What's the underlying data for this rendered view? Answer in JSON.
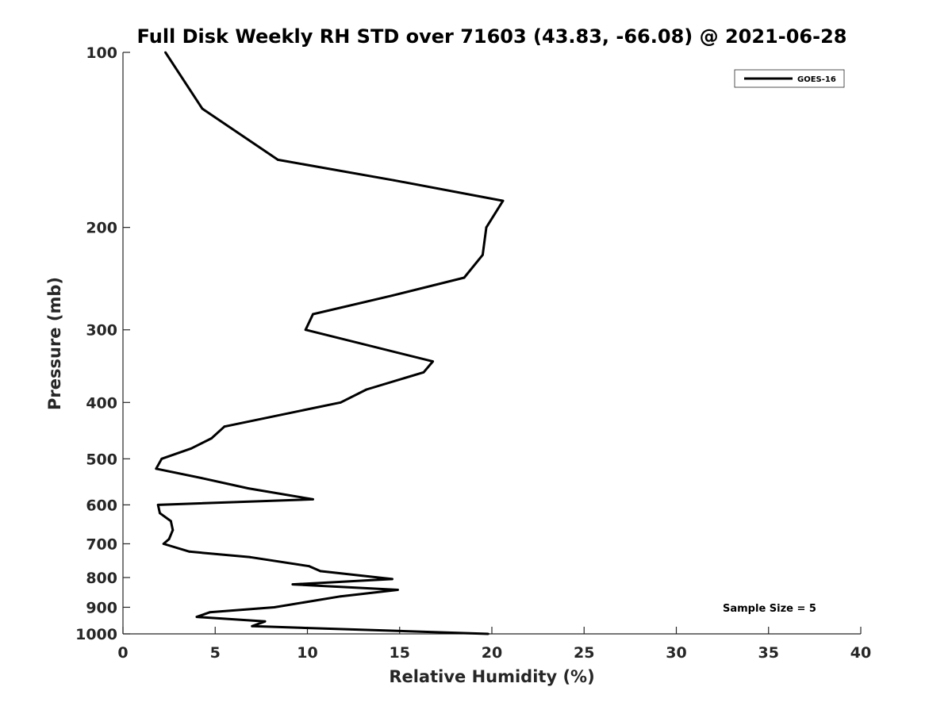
{
  "chart_data": {
    "type": "line",
    "title": "Full Disk Weekly RH STD over 71603 (43.83, -66.08) @ 2021-06-28",
    "xlabel": "Relative Humidity (%)",
    "ylabel": "Pressure (mb)",
    "xlim": [
      0,
      40
    ],
    "ylim": [
      100,
      1000
    ],
    "yscale": "log",
    "y_reversed": true,
    "x_ticks": [
      0,
      5,
      10,
      15,
      20,
      25,
      30,
      35,
      40
    ],
    "x_tick_labels": [
      "0",
      "5",
      "10",
      "15",
      "20",
      "25",
      "30",
      "35",
      "40"
    ],
    "y_ticks": [
      100,
      200,
      300,
      400,
      500,
      600,
      700,
      800,
      900,
      1000
    ],
    "y_tick_labels": [
      "100",
      "200",
      "300",
      "400",
      "500",
      "600",
      "700",
      "800",
      "900",
      "1000"
    ],
    "grid": false,
    "legend": {
      "position": "top-right",
      "entries": [
        "GOES-16"
      ]
    },
    "annotation": "Sample Size = 5",
    "series": [
      {
        "name": "GOES-16",
        "color": "#000000",
        "points": [
          [
            2.3,
            100
          ],
          [
            4.3,
            125
          ],
          [
            8.4,
            153
          ],
          [
            14.7,
            166
          ],
          [
            20.6,
            180
          ],
          [
            19.7,
            200
          ],
          [
            19.5,
            223
          ],
          [
            18.5,
            244
          ],
          [
            14.6,
            262
          ],
          [
            10.3,
            282
          ],
          [
            9.9,
            300
          ],
          [
            16.8,
            340
          ],
          [
            16.3,
            355
          ],
          [
            13.2,
            380
          ],
          [
            11.8,
            400
          ],
          [
            5.5,
            440
          ],
          [
            4.8,
            461
          ],
          [
            3.7,
            480
          ],
          [
            2.1,
            500
          ],
          [
            1.8,
            520
          ],
          [
            4.3,
            540
          ],
          [
            6.8,
            562
          ],
          [
            10.3,
            587
          ],
          [
            1.9,
            600
          ],
          [
            2.0,
            620
          ],
          [
            2.6,
            640
          ],
          [
            2.7,
            663
          ],
          [
            2.5,
            687
          ],
          [
            2.2,
            700
          ],
          [
            3.6,
            722
          ],
          [
            6.9,
            738
          ],
          [
            10.1,
            765
          ],
          [
            10.7,
            780
          ],
          [
            14.6,
            805
          ],
          [
            9.2,
            822
          ],
          [
            14.9,
            840
          ],
          [
            11.8,
            862
          ],
          [
            8.2,
            900
          ],
          [
            4.7,
            918
          ],
          [
            4.0,
            935
          ],
          [
            7.7,
            952
          ],
          [
            7.0,
            970
          ],
          [
            19.8,
            1000
          ]
        ]
      }
    ]
  }
}
